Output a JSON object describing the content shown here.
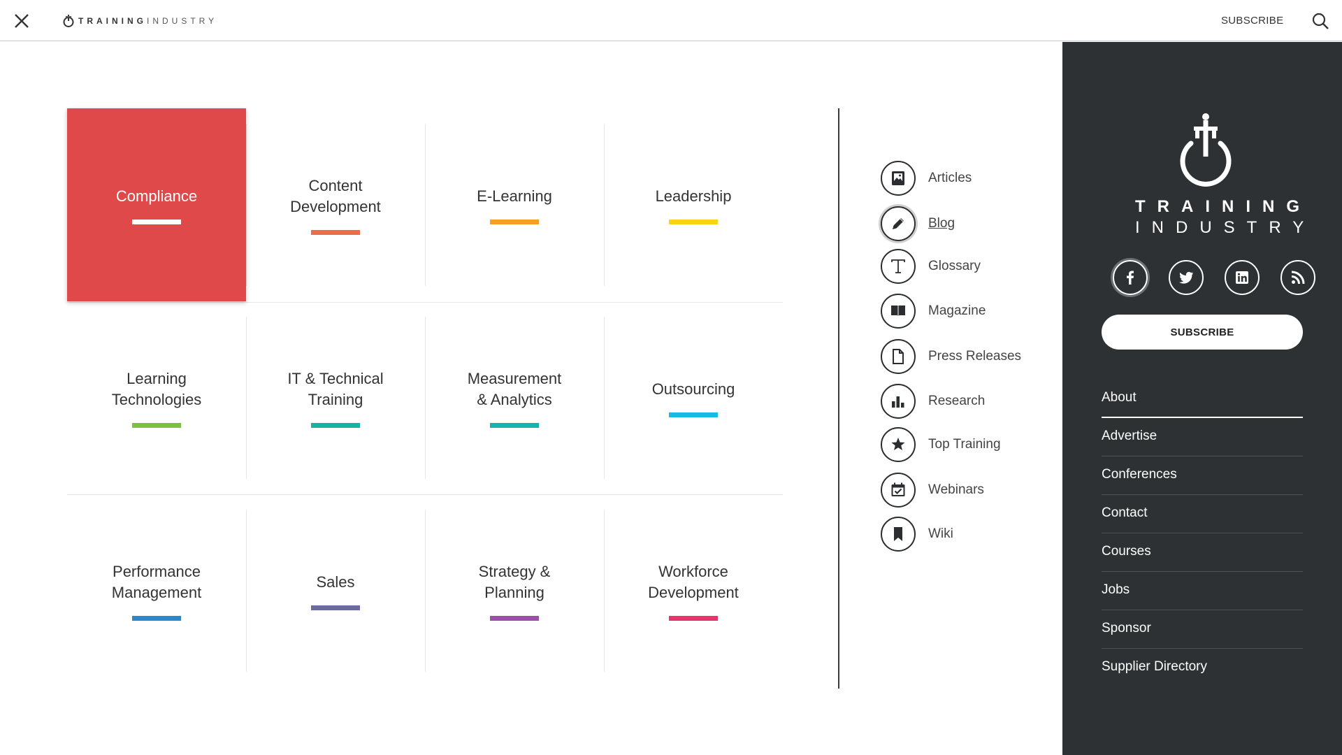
{
  "header": {
    "logo_word1": "TRAINING",
    "logo_word2": "INDUSTRY",
    "subscribe_label": "SUBSCRIBE",
    "close_icon": "close-icon",
    "search_icon": "search-icon"
  },
  "categories": [
    {
      "label": "Compliance",
      "color": "#ffffff",
      "active": true
    },
    {
      "label": "Content\nDevelopment",
      "color": "#ec6c4d"
    },
    {
      "label": "E-Learning",
      "color": "#f5a021"
    },
    {
      "label": "Leadership",
      "color": "#f5d515"
    },
    {
      "label": "Learning\nTechnologies",
      "color": "#7bc043"
    },
    {
      "label": "IT & Technical\nTraining",
      "color": "#15b3a2"
    },
    {
      "label": "Measurement\n& Analytics",
      "color": "#14b4b0"
    },
    {
      "label": "Outsourcing",
      "color": "#1ab9e6"
    },
    {
      "label": "Performance\nManagement",
      "color": "#2f86c8"
    },
    {
      "label": "Sales",
      "color": "#6a6aa0"
    },
    {
      "label": "Strategy &\nPlanning",
      "color": "#9b52a6"
    },
    {
      "label": "Workforce\nDevelopment",
      "color": "#e8336b"
    }
  ],
  "active_tile_color": "#df4949",
  "resources": [
    {
      "label": "Articles",
      "icon": "image-icon"
    },
    {
      "label": "Blog",
      "icon": "pencil-icon",
      "active": true
    },
    {
      "label": "Glossary",
      "icon": "letter-t-icon"
    },
    {
      "label": "Magazine",
      "icon": "book-icon"
    },
    {
      "label": "Press Releases",
      "icon": "document-icon"
    },
    {
      "label": "Research",
      "icon": "bar-chart-icon"
    },
    {
      "label": "Top Training",
      "icon": "star-icon"
    },
    {
      "label": "Webinars",
      "icon": "calendar-check-icon"
    },
    {
      "label": "Wiki",
      "icon": "bookmark-icon"
    }
  ],
  "panel": {
    "logo_word1": "TRAINING",
    "logo_word2": "INDUSTRY",
    "socials": [
      "facebook-icon",
      "twitter-icon",
      "linkedin-icon",
      "rss-icon"
    ],
    "subscribe_label": "SUBSCRIBE",
    "background": "#2d3134",
    "links": [
      "About",
      "Advertise",
      "Conferences",
      "Contact",
      "Courses",
      "Jobs",
      "Sponsor",
      "Supplier Directory"
    ]
  }
}
